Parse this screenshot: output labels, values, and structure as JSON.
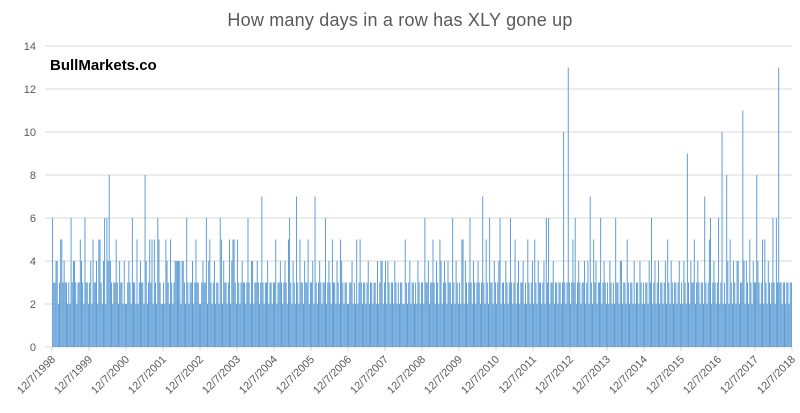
{
  "page": {
    "title": "How many days in a row has XLY gone up",
    "watermark": "BullMarkets.co"
  },
  "chart_data": {
    "type": "bar",
    "title": "How many days in a row has XLY gone up",
    "watermark": "BullMarkets.co",
    "xlabel": "",
    "ylabel": "",
    "ylim": [
      0,
      14
    ],
    "y_ticks": [
      0,
      2,
      4,
      6,
      8,
      10,
      12,
      14
    ],
    "grid": "horizontal",
    "legend": "none",
    "bar_color": "#5B9BD5",
    "gridline_color": "#D9D9D9",
    "axis_text_color": "#595959",
    "title_color": "#595959",
    "x_tick_labels": [
      "12/7/1998",
      "12/7/1999",
      "12/7/2000",
      "12/7/2001",
      "12/7/2002",
      "12/7/2003",
      "12/7/2004",
      "12/7/2005",
      "12/7/2006",
      "12/7/2007",
      "12/7/2008",
      "12/7/2009",
      "12/7/2010",
      "12/7/2011",
      "12/7/2012",
      "12/7/2013",
      "12/7/2014",
      "12/7/2015",
      "12/7/2016",
      "12/7/2017",
      "12/7/2018"
    ],
    "bars_per_year": 32,
    "values": [
      6,
      3,
      3,
      4,
      4,
      2,
      3,
      5,
      5,
      3,
      4,
      3,
      3,
      2,
      3,
      2,
      6,
      3,
      4,
      4,
      3,
      2,
      3,
      3,
      5,
      4,
      3,
      2,
      6,
      3,
      3,
      2,
      3,
      4,
      2,
      5,
      3,
      3,
      4,
      2,
      5,
      5,
      3,
      2,
      4,
      6,
      2,
      6,
      4,
      8,
      4,
      3,
      2,
      3,
      3,
      5,
      3,
      2,
      4,
      3,
      3,
      2,
      4,
      2,
      2,
      3,
      4,
      3,
      2,
      6,
      3,
      3,
      2,
      5,
      2,
      3,
      4,
      3,
      3,
      2,
      8,
      4,
      2,
      3,
      5,
      3,
      5,
      2,
      5,
      3,
      2,
      6,
      5,
      3,
      2,
      2,
      3,
      2,
      5,
      4,
      3,
      2,
      5,
      3,
      2,
      3,
      4,
      4,
      4,
      4,
      4,
      2,
      4,
      4,
      3,
      2,
      6,
      3,
      2,
      3,
      3,
      4,
      2,
      3,
      5,
      3,
      3,
      2,
      2,
      3,
      4,
      3,
      3,
      6,
      2,
      4,
      5,
      3,
      2,
      3,
      4,
      2,
      3,
      3,
      2,
      6,
      5,
      2,
      4,
      3,
      3,
      2,
      3,
      5,
      2,
      4,
      5,
      5,
      3,
      2,
      5,
      3,
      2,
      3,
      4,
      3,
      3,
      2,
      3,
      6,
      3,
      2,
      4,
      4,
      2,
      3,
      3,
      4,
      3,
      2,
      3,
      7,
      3,
      2,
      3,
      3,
      4,
      2,
      3,
      3,
      2,
      3,
      3,
      5,
      2,
      3,
      3,
      4,
      3,
      2,
      3,
      4,
      3,
      2,
      5,
      6,
      3,
      2,
      4,
      3,
      2,
      7,
      3,
      2,
      5,
      3,
      3,
      2,
      4,
      3,
      3,
      5,
      2,
      3,
      3,
      4,
      2,
      7,
      3,
      2,
      3,
      4,
      3,
      2,
      3,
      3,
      6,
      2,
      3,
      4,
      3,
      2,
      5,
      3,
      3,
      2,
      4,
      3,
      2,
      5,
      4,
      3,
      2,
      3,
      3,
      2,
      2,
      3,
      3,
      4,
      2,
      3,
      2,
      5,
      2,
      3,
      5,
      3,
      2,
      3,
      3,
      2,
      3,
      4,
      2,
      3,
      3,
      2,
      3,
      3,
      2,
      4,
      2,
      3,
      4,
      4,
      2,
      3,
      4,
      2,
      4,
      3,
      2,
      3,
      3,
      2,
      4,
      3,
      2,
      3,
      2,
      3,
      3,
      2,
      2,
      5,
      3,
      2,
      3,
      4,
      2,
      3,
      3,
      2,
      3,
      2,
      4,
      3,
      2,
      3,
      3,
      2,
      6,
      3,
      3,
      4,
      2,
      3,
      3,
      5,
      3,
      2,
      4,
      3,
      2,
      5,
      4,
      2,
      3,
      4,
      3,
      2,
      4,
      3,
      3,
      2,
      6,
      3,
      2,
      4,
      3,
      2,
      3,
      2,
      5,
      5,
      2,
      4,
      3,
      2,
      3,
      6,
      3,
      2,
      4,
      3,
      2,
      3,
      4,
      3,
      2,
      3,
      7,
      3,
      2,
      5,
      3,
      2,
      6,
      3,
      3,
      2,
      4,
      3,
      2,
      3,
      4,
      6,
      2,
      3,
      3,
      2,
      4,
      3,
      2,
      3,
      6,
      3,
      2,
      3,
      5,
      2,
      3,
      4,
      2,
      3,
      3,
      4,
      2,
      3,
      2,
      5,
      3,
      2,
      3,
      4,
      2,
      5,
      3,
      2,
      4,
      3,
      3,
      2,
      3,
      4,
      2,
      6,
      3,
      6,
      2,
      3,
      3,
      4,
      2,
      3,
      3,
      2,
      3,
      3,
      2,
      3,
      10,
      3,
      2,
      3,
      13,
      3,
      2,
      3,
      5,
      3,
      6,
      2,
      3,
      4,
      3,
      2,
      3,
      3,
      4,
      2,
      3,
      4,
      2,
      7,
      3,
      2,
      5,
      3,
      4,
      2,
      3,
      3,
      6,
      2,
      3,
      4,
      3,
      2,
      3,
      2,
      4,
      3,
      2,
      3,
      2,
      6,
      3,
      3,
      2,
      4,
      4,
      2,
      3,
      3,
      2,
      5,
      3,
      2,
      3,
      3,
      2,
      4,
      2,
      3,
      3,
      2,
      4,
      3,
      2,
      3,
      2,
      3,
      3,
      2,
      4,
      3,
      6,
      2,
      3,
      4,
      2,
      3,
      4,
      2,
      3,
      3,
      2,
      3,
      4,
      2,
      5,
      3,
      2,
      4,
      3,
      2,
      3,
      3,
      2,
      3,
      4,
      2,
      3,
      2,
      4,
      3,
      2,
      9,
      3,
      2,
      4,
      3,
      3,
      5,
      2,
      3,
      4,
      3,
      2,
      3,
      3,
      2,
      7,
      3,
      2,
      3,
      5,
      6,
      2,
      3,
      4,
      3,
      2,
      3,
      6,
      2,
      3,
      10,
      2,
      3,
      2,
      8,
      4,
      2,
      5,
      3,
      2,
      4,
      3,
      2,
      4,
      4,
      2,
      3,
      3,
      11,
      4,
      2,
      4,
      3,
      2,
      5,
      3,
      2,
      4,
      3,
      3,
      8,
      4,
      3,
      2,
      3,
      5,
      2,
      5,
      3,
      2,
      4,
      3,
      2,
      3,
      6,
      3,
      2,
      6,
      3,
      13,
      3,
      3,
      2,
      3,
      3,
      2,
      3,
      3,
      2,
      3,
      3
    ]
  }
}
